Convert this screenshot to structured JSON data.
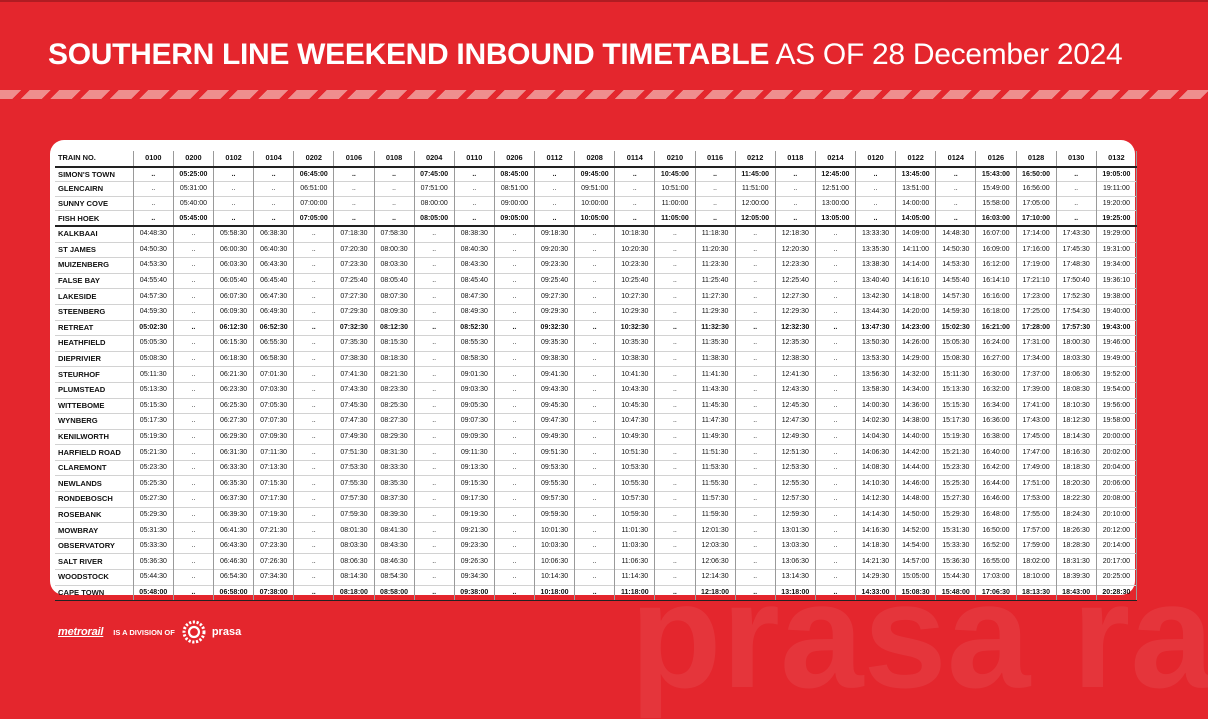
{
  "title": {
    "bold": "SOUTHERN LINE WEEKEND INBOUND TIMETABLE",
    "rest": "AS OF 28 December 2024"
  },
  "timetable": {
    "header_label": "TRAIN NO.",
    "trains": [
      "0100",
      "0200",
      "0102",
      "0104",
      "0202",
      "0106",
      "0108",
      "0204",
      "0110",
      "0206",
      "0112",
      "0208",
      "0114",
      "0210",
      "0116",
      "0212",
      "0118",
      "0214",
      "0120",
      "0122",
      "0124",
      "0126",
      "0128",
      "0130",
      "0132"
    ],
    "rows": [
      {
        "station": "SIMON'S TOWN",
        "times": [
          "..",
          "05:25:00",
          "..",
          "..",
          "06:45:00",
          "..",
          "..",
          "07:45:00",
          "..",
          "08:45:00",
          "..",
          "09:45:00",
          "..",
          "10:45:00",
          "..",
          "11:45:00",
          "..",
          "12:45:00",
          "..",
          "13:45:00",
          "..",
          "15:43:00",
          "16:50:00",
          "..",
          "19:05:00"
        ]
      },
      {
        "station": "GLENCAIRN",
        "times": [
          "..",
          "05:31:00",
          "..",
          "..",
          "06:51:00",
          "..",
          "..",
          "07:51:00",
          "..",
          "08:51:00",
          "..",
          "09:51:00",
          "..",
          "10:51:00",
          "..",
          "11:51:00",
          "..",
          "12:51:00",
          "..",
          "13:51:00",
          "..",
          "15:49:00",
          "16:56:00",
          "..",
          "19:11:00"
        ]
      },
      {
        "station": "SUNNY COVE",
        "times": [
          "..",
          "05:40:00",
          "..",
          "..",
          "07:00:00",
          "..",
          "..",
          "08:00:00",
          "..",
          "09:00:00",
          "..",
          "10:00:00",
          "..",
          "11:00:00",
          "..",
          "12:00:00",
          "..",
          "13:00:00",
          "..",
          "14:00:00",
          "..",
          "15:58:00",
          "17:05:00",
          "..",
          "19:20:00"
        ]
      },
      {
        "station": "FISH HOEK",
        "times": [
          "..",
          "05:45:00",
          "..",
          "..",
          "07:05:00",
          "..",
          "..",
          "08:05:00",
          "..",
          "09:05:00",
          "..",
          "10:05:00",
          "..",
          "11:05:00",
          "..",
          "12:05:00",
          "..",
          "13:05:00",
          "..",
          "14:05:00",
          "..",
          "16:03:00",
          "17:10:00",
          "..",
          "19:25:00"
        ]
      },
      {
        "station": "KALKBAAI",
        "times": [
          "04:48:30",
          "..",
          "05:58:30",
          "06:38:30",
          "..",
          "07:18:30",
          "07:58:30",
          "..",
          "08:38:30",
          "..",
          "09:18:30",
          "..",
          "10:18:30",
          "..",
          "11:18:30",
          "..",
          "12:18:30",
          "..",
          "13:33:30",
          "14:09:00",
          "14:48:30",
          "16:07:00",
          "17:14:00",
          "17:43:30",
          "19:29:00"
        ]
      },
      {
        "station": "ST JAMES",
        "times": [
          "04:50:30",
          "..",
          "06:00:30",
          "06:40:30",
          "..",
          "07:20:30",
          "08:00:30",
          "..",
          "08:40:30",
          "..",
          "09:20:30",
          "..",
          "10:20:30",
          "..",
          "11:20:30",
          "..",
          "12:20:30",
          "..",
          "13:35:30",
          "14:11:00",
          "14:50:30",
          "16:09:00",
          "17:16:00",
          "17:45:30",
          "19:31:00"
        ]
      },
      {
        "station": "MUIZENBERG",
        "times": [
          "04:53:30",
          "..",
          "06:03:30",
          "06:43:30",
          "..",
          "07:23:30",
          "08:03:30",
          "..",
          "08:43:30",
          "..",
          "09:23:30",
          "..",
          "10:23:30",
          "..",
          "11:23:30",
          "..",
          "12:23:30",
          "..",
          "13:38:30",
          "14:14:00",
          "14:53:30",
          "16:12:00",
          "17:19:00",
          "17:48:30",
          "19:34:00"
        ]
      },
      {
        "station": "FALSE BAY",
        "times": [
          "04:55:40",
          "..",
          "06:05:40",
          "06:45:40",
          "..",
          "07:25:40",
          "08:05:40",
          "..",
          "08:45:40",
          "..",
          "09:25:40",
          "..",
          "10:25:40",
          "..",
          "11:25:40",
          "..",
          "12:25:40",
          "..",
          "13:40:40",
          "14:16:10",
          "14:55:40",
          "16:14:10",
          "17:21:10",
          "17:50:40",
          "19:36:10"
        ]
      },
      {
        "station": "LAKESIDE",
        "times": [
          "04:57:30",
          "..",
          "06:07:30",
          "06:47:30",
          "..",
          "07:27:30",
          "08:07:30",
          "..",
          "08:47:30",
          "..",
          "09:27:30",
          "..",
          "10:27:30",
          "..",
          "11:27:30",
          "..",
          "12:27:30",
          "..",
          "13:42:30",
          "14:18:00",
          "14:57:30",
          "16:16:00",
          "17:23:00",
          "17:52:30",
          "19:38:00"
        ]
      },
      {
        "station": "STEENBERG",
        "times": [
          "04:59:30",
          "..",
          "06:09:30",
          "06:49:30",
          "..",
          "07:29:30",
          "08:09:30",
          "..",
          "08:49:30",
          "..",
          "09:29:30",
          "..",
          "10:29:30",
          "..",
          "11:29:30",
          "..",
          "12:29:30",
          "..",
          "13:44:30",
          "14:20:00",
          "14:59:30",
          "16:18:00",
          "17:25:00",
          "17:54:30",
          "19:40:00"
        ]
      },
      {
        "station": "RETREAT",
        "times": [
          "05:02:30",
          "..",
          "06:12:30",
          "06:52:30",
          "..",
          "07:32:30",
          "08:12:30",
          "..",
          "08:52:30",
          "..",
          "09:32:30",
          "..",
          "10:32:30",
          "..",
          "11:32:30",
          "..",
          "12:32:30",
          "..",
          "13:47:30",
          "14:23:00",
          "15:02:30",
          "16:21:00",
          "17:28:00",
          "17:57:30",
          "19:43:00"
        ]
      },
      {
        "station": "HEATHFIELD",
        "times": [
          "05:05:30",
          "..",
          "06:15:30",
          "06:55:30",
          "..",
          "07:35:30",
          "08:15:30",
          "..",
          "08:55:30",
          "..",
          "09:35:30",
          "..",
          "10:35:30",
          "..",
          "11:35:30",
          "..",
          "12:35:30",
          "..",
          "13:50:30",
          "14:26:00",
          "15:05:30",
          "16:24:00",
          "17:31:00",
          "18:00:30",
          "19:46:00"
        ]
      },
      {
        "station": "DIEPRIVIER",
        "times": [
          "05:08:30",
          "..",
          "06:18:30",
          "06:58:30",
          "..",
          "07:38:30",
          "08:18:30",
          "..",
          "08:58:30",
          "..",
          "09:38:30",
          "..",
          "10:38:30",
          "..",
          "11:38:30",
          "..",
          "12:38:30",
          "..",
          "13:53:30",
          "14:29:00",
          "15:08:30",
          "16:27:00",
          "17:34:00",
          "18:03:30",
          "19:49:00"
        ]
      },
      {
        "station": "STEURHOF",
        "times": [
          "05:11:30",
          "..",
          "06:21:30",
          "07:01:30",
          "..",
          "07:41:30",
          "08:21:30",
          "..",
          "09:01:30",
          "..",
          "09:41:30",
          "..",
          "10:41:30",
          "..",
          "11:41:30",
          "..",
          "12:41:30",
          "..",
          "13:56:30",
          "14:32:00",
          "15:11:30",
          "16:30:00",
          "17:37:00",
          "18:06:30",
          "19:52:00"
        ]
      },
      {
        "station": "PLUMSTEAD",
        "times": [
          "05:13:30",
          "..",
          "06:23:30",
          "07:03:30",
          "..",
          "07:43:30",
          "08:23:30",
          "..",
          "09:03:30",
          "..",
          "09:43:30",
          "..",
          "10:43:30",
          "..",
          "11:43:30",
          "..",
          "12:43:30",
          "..",
          "13:58:30",
          "14:34:00",
          "15:13:30",
          "16:32:00",
          "17:39:00",
          "18:08:30",
          "19:54:00"
        ]
      },
      {
        "station": "WITTEBOME",
        "times": [
          "05:15:30",
          "..",
          "06:25:30",
          "07:05:30",
          "..",
          "07:45:30",
          "08:25:30",
          "..",
          "09:05:30",
          "..",
          "09:45:30",
          "..",
          "10:45:30",
          "..",
          "11:45:30",
          "..",
          "12:45:30",
          "..",
          "14:00:30",
          "14:36:00",
          "15:15:30",
          "16:34:00",
          "17:41:00",
          "18:10:30",
          "19:56:00"
        ]
      },
      {
        "station": "WYNBERG",
        "times": [
          "05:17:30",
          "..",
          "06:27:30",
          "07:07:30",
          "..",
          "07:47:30",
          "08:27:30",
          "..",
          "09:07:30",
          "..",
          "09:47:30",
          "..",
          "10:47:30",
          "..",
          "11:47:30",
          "..",
          "12:47:30",
          "..",
          "14:02:30",
          "14:38:00",
          "15:17:30",
          "16:36:00",
          "17:43:00",
          "18:12:30",
          "19:58:00"
        ]
      },
      {
        "station": "KENILWORTH",
        "times": [
          "05:19:30",
          "..",
          "06:29:30",
          "07:09:30",
          "..",
          "07:49:30",
          "08:29:30",
          "..",
          "09:09:30",
          "..",
          "09:49:30",
          "..",
          "10:49:30",
          "..",
          "11:49:30",
          "..",
          "12:49:30",
          "..",
          "14:04:30",
          "14:40:00",
          "15:19:30",
          "16:38:00",
          "17:45:00",
          "18:14:30",
          "20:00:00"
        ]
      },
      {
        "station": "HARFIELD ROAD",
        "times": [
          "05:21:30",
          "..",
          "06:31:30",
          "07:11:30",
          "..",
          "07:51:30",
          "08:31:30",
          "..",
          "09:11:30",
          "..",
          "09:51:30",
          "..",
          "10:51:30",
          "..",
          "11:51:30",
          "..",
          "12:51:30",
          "..",
          "14:06:30",
          "14:42:00",
          "15:21:30",
          "16:40:00",
          "17:47:00",
          "18:16:30",
          "20:02:00"
        ]
      },
      {
        "station": "CLAREMONT",
        "times": [
          "05:23:30",
          "..",
          "06:33:30",
          "07:13:30",
          "..",
          "07:53:30",
          "08:33:30",
          "..",
          "09:13:30",
          "..",
          "09:53:30",
          "..",
          "10:53:30",
          "..",
          "11:53:30",
          "..",
          "12:53:30",
          "..",
          "14:08:30",
          "14:44:00",
          "15:23:30",
          "16:42:00",
          "17:49:00",
          "18:18:30",
          "20:04:00"
        ]
      },
      {
        "station": "NEWLANDS",
        "times": [
          "05:25:30",
          "..",
          "06:35:30",
          "07:15:30",
          "..",
          "07:55:30",
          "08:35:30",
          "..",
          "09:15:30",
          "..",
          "09:55:30",
          "..",
          "10:55:30",
          "..",
          "11:55:30",
          "..",
          "12:55:30",
          "..",
          "14:10:30",
          "14:46:00",
          "15:25:30",
          "16:44:00",
          "17:51:00",
          "18:20:30",
          "20:06:00"
        ]
      },
      {
        "station": "RONDEBOSCH",
        "times": [
          "05:27:30",
          "..",
          "06:37:30",
          "07:17:30",
          "..",
          "07:57:30",
          "08:37:30",
          "..",
          "09:17:30",
          "..",
          "09:57:30",
          "..",
          "10:57:30",
          "..",
          "11:57:30",
          "..",
          "12:57:30",
          "..",
          "14:12:30",
          "14:48:00",
          "15:27:30",
          "16:46:00",
          "17:53:00",
          "18:22:30",
          "20:08:00"
        ]
      },
      {
        "station": "ROSEBANK",
        "times": [
          "05:29:30",
          "..",
          "06:39:30",
          "07:19:30",
          "..",
          "07:59:30",
          "08:39:30",
          "..",
          "09:19:30",
          "..",
          "09:59:30",
          "..",
          "10:59:30",
          "..",
          "11:59:30",
          "..",
          "12:59:30",
          "..",
          "14:14:30",
          "14:50:00",
          "15:29:30",
          "16:48:00",
          "17:55:00",
          "18:24:30",
          "20:10:00"
        ]
      },
      {
        "station": "MOWBRAY",
        "times": [
          "05:31:30",
          "..",
          "06:41:30",
          "07:21:30",
          "..",
          "08:01:30",
          "08:41:30",
          "..",
          "09:21:30",
          "..",
          "10:01:30",
          "..",
          "11:01:30",
          "..",
          "12:01:30",
          "..",
          "13:01:30",
          "..",
          "14:16:30",
          "14:52:00",
          "15:31:30",
          "16:50:00",
          "17:57:00",
          "18:26:30",
          "20:12:00"
        ]
      },
      {
        "station": "OBSERVATORY",
        "times": [
          "05:33:30",
          "..",
          "06:43:30",
          "07:23:30",
          "..",
          "08:03:30",
          "08:43:30",
          "..",
          "09:23:30",
          "..",
          "10:03:30",
          "..",
          "11:03:30",
          "..",
          "12:03:30",
          "..",
          "13:03:30",
          "..",
          "14:18:30",
          "14:54:00",
          "15:33:30",
          "16:52:00",
          "17:59:00",
          "18:28:30",
          "20:14:00"
        ]
      },
      {
        "station": "SALT RIVER",
        "times": [
          "05:36:30",
          "..",
          "06:46:30",
          "07:26:30",
          "..",
          "08:06:30",
          "08:46:30",
          "..",
          "09:26:30",
          "..",
          "10:06:30",
          "..",
          "11:06:30",
          "..",
          "12:06:30",
          "..",
          "13:06:30",
          "..",
          "14:21:30",
          "14:57:00",
          "15:36:30",
          "16:55:00",
          "18:02:00",
          "18:31:30",
          "20:17:00"
        ]
      },
      {
        "station": "WOODSTOCK",
        "times": [
          "05:44:30",
          "..",
          "06:54:30",
          "07:34:30",
          "..",
          "08:14:30",
          "08:54:30",
          "..",
          "09:34:30",
          "..",
          "10:14:30",
          "..",
          "11:14:30",
          "..",
          "12:14:30",
          "..",
          "13:14:30",
          "..",
          "14:29:30",
          "15:05:00",
          "15:44:30",
          "17:03:00",
          "18:10:00",
          "18:39:30",
          "20:25:00"
        ]
      },
      {
        "station": "CAPE TOWN",
        "times": [
          "05:48:00",
          "..",
          "06:58:00",
          "07:38:00",
          "..",
          "08:18:00",
          "08:58:00",
          "..",
          "09:38:00",
          "..",
          "10:18:00",
          "..",
          "11:18:00",
          "..",
          "12:18:00",
          "..",
          "13:18:00",
          "..",
          "14:33:00",
          "15:08:30",
          "15:48:00",
          "17:06:30",
          "18:13:30",
          "18:43:00",
          "20:28:30"
        ]
      }
    ]
  },
  "footer": {
    "logo": "metrorail",
    "division": "IS A DIVISION OF",
    "prasa": "prasa"
  },
  "watermark": "prasa rail",
  "colors": {
    "background": "#e4262d",
    "card": "#ffffff",
    "stripe": "#ef8e8e"
  }
}
